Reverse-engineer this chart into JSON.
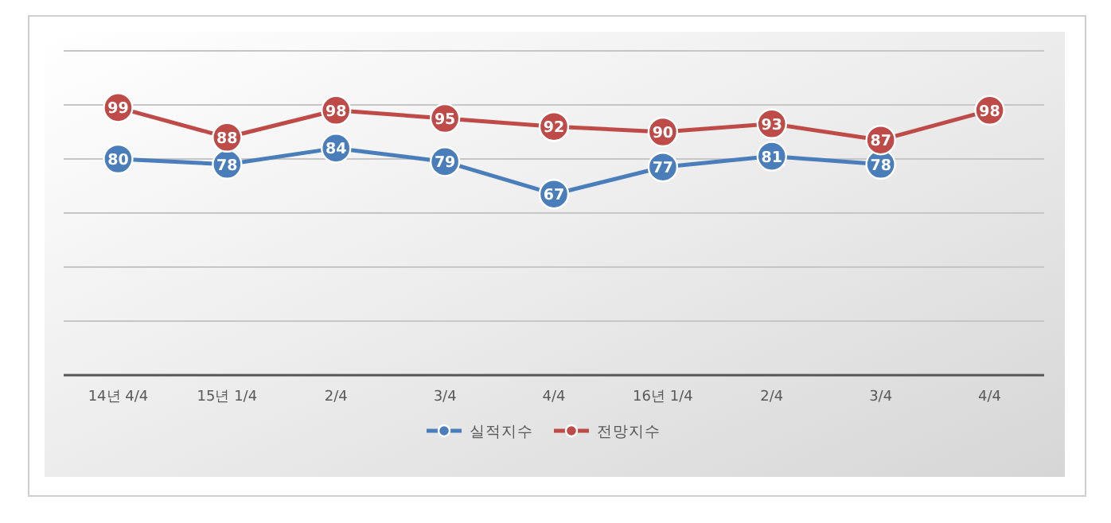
{
  "chart_data": {
    "type": "line",
    "categories": [
      "14년 4/4",
      "15년 1/4",
      "2/4",
      "3/4",
      "4/4",
      "16년 1/4",
      "2/4",
      "3/4",
      "4/4"
    ],
    "series": [
      {
        "name": "실적지수",
        "color": "#4a7ebb",
        "values": [
          80,
          78,
          84,
          79,
          67,
          77,
          81,
          78,
          null
        ]
      },
      {
        "name": "전망지수",
        "color": "#be4b48",
        "values": [
          99,
          88,
          98,
          95,
          92,
          90,
          93,
          87,
          98
        ]
      }
    ],
    "ylim": [
      0,
      120
    ],
    "yticks": [
      {
        "value": 0,
        "label": null
      },
      {
        "value": 20,
        "label": null
      },
      {
        "value": 40,
        "label": null
      },
      {
        "value": 60,
        "label": null
      },
      {
        "value": 80,
        "label": null
      },
      {
        "value": 100,
        "label": null
      },
      {
        "value": 120,
        "label": null
      }
    ],
    "tick_labels": "x",
    "grid": "y",
    "data_labels": true,
    "marker": "circle",
    "line_style": "solid",
    "legend": "bottom"
  }
}
